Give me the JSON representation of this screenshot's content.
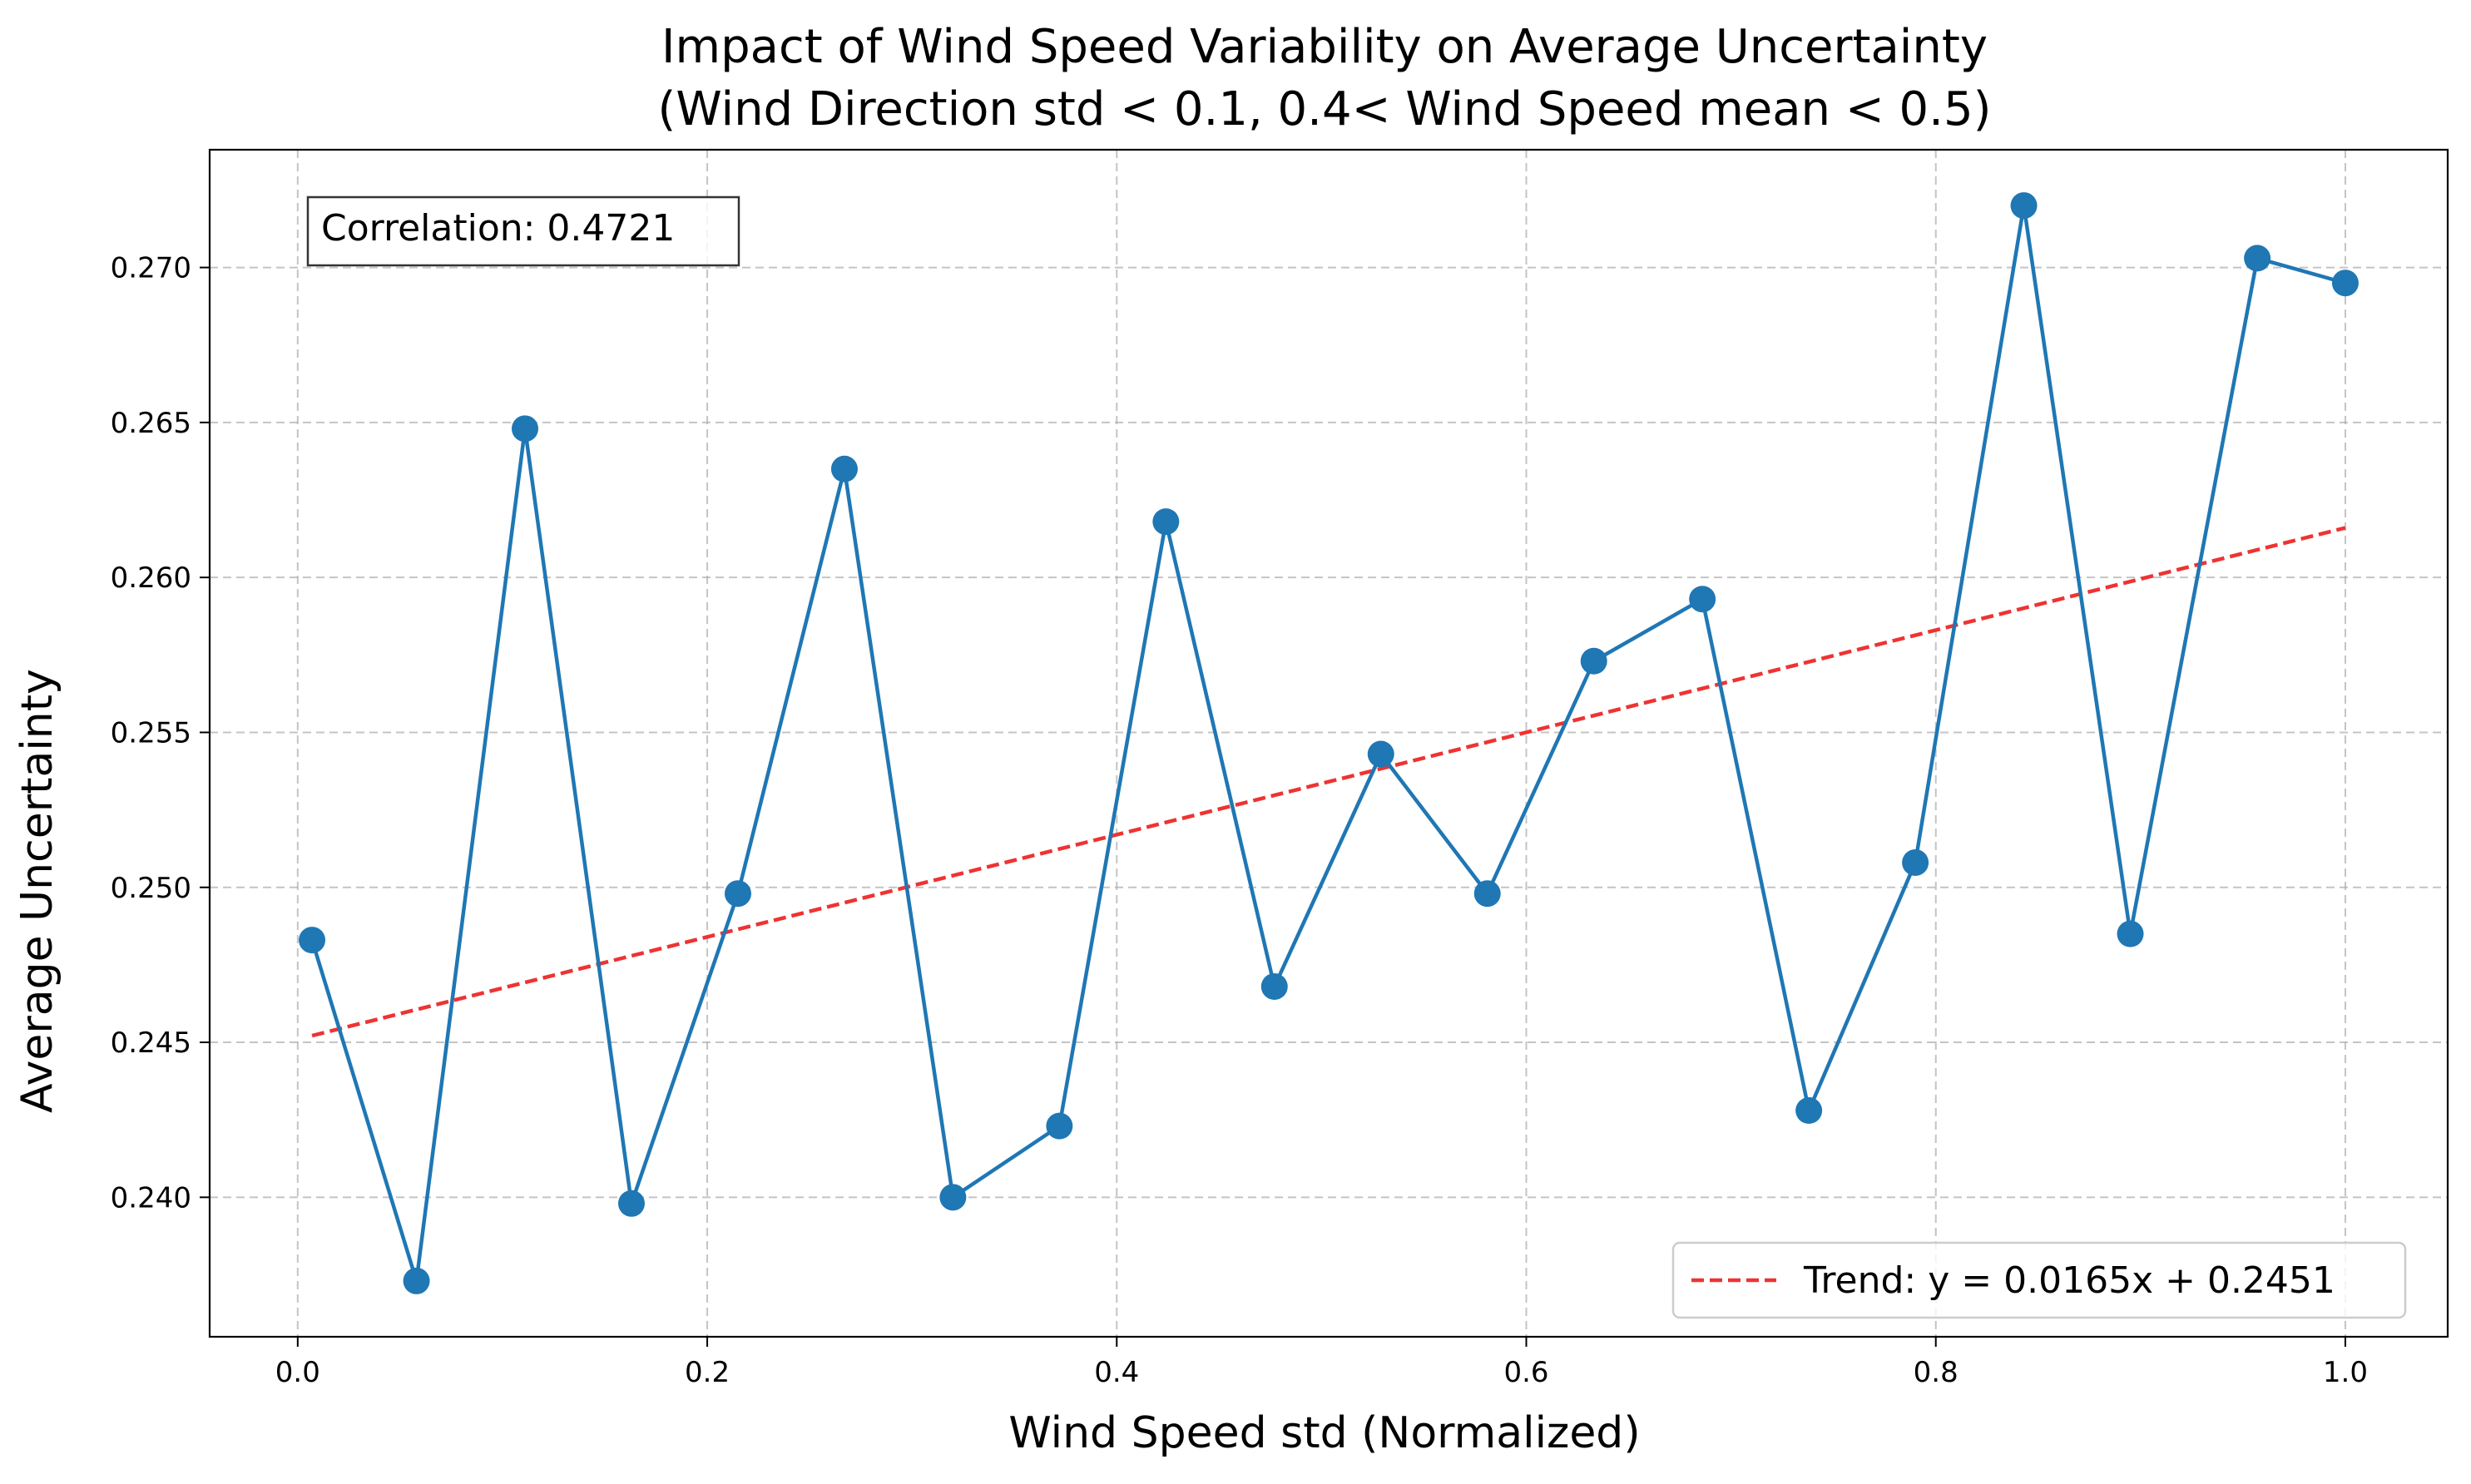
{
  "chart_data": {
    "type": "line",
    "title_line1": "Impact of Wind Speed Variability on Average Uncertainty",
    "title_line2": "(Wind Direction std < 0.1, 0.4< Wind Speed mean < 0.5)",
    "xlabel": "Wind Speed std (Normalized)",
    "ylabel": "Average Uncertainty",
    "xlim": [
      -0.043,
      1.05
    ],
    "ylim": [
      0.2355,
      0.2738
    ],
    "xticks": [
      0.0,
      0.2,
      0.4,
      0.6,
      0.8,
      1.0
    ],
    "xtick_labels": [
      "0.0",
      "0.2",
      "0.4",
      "0.6",
      "0.8",
      "1.0"
    ],
    "yticks": [
      0.24,
      0.245,
      0.25,
      0.255,
      0.26,
      0.265,
      0.27
    ],
    "ytick_labels": [
      "0.240",
      "0.245",
      "0.250",
      "0.255",
      "0.260",
      "0.265",
      "0.270"
    ],
    "grid": true,
    "series": [
      {
        "color": "#1f77b4",
        "x": [
          0.007,
          0.058,
          0.111,
          0.163,
          0.215,
          0.267,
          0.32,
          0.372,
          0.424,
          0.477,
          0.529,
          0.581,
          0.633,
          0.686,
          0.738,
          0.79,
          0.843,
          0.895,
          0.957,
          1.0
        ],
        "y": [
          0.2483,
          0.2373,
          0.2648,
          0.2398,
          0.2498,
          0.2635,
          0.24,
          0.2423,
          0.2618,
          0.2468,
          0.2543,
          0.2498,
          0.2573,
          0.2593,
          0.2428,
          0.2508,
          0.272,
          0.2485,
          0.2703,
          0.2695
        ]
      }
    ],
    "trend": {
      "name": "Trend: y = 0.0165x + 0.2451",
      "slope": 0.0165,
      "intercept": 0.2451,
      "x_range": [
        0.007,
        1.0
      ],
      "color": "#ee3333"
    },
    "annotation": "Correlation: 0.4721",
    "legend_placement": "lower-right"
  }
}
